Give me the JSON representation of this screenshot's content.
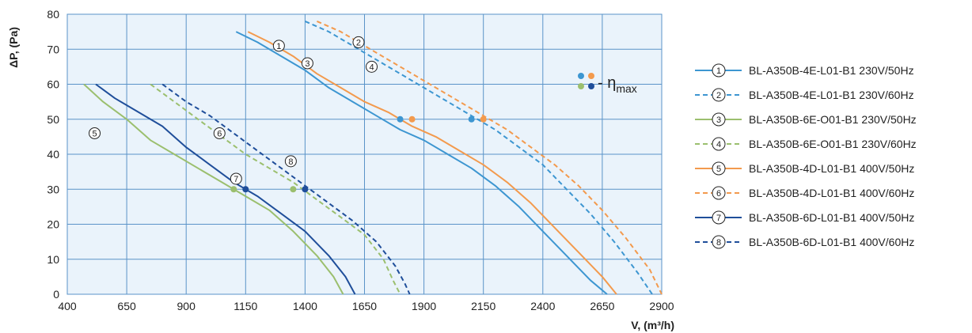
{
  "chart_data": {
    "type": "line",
    "xlabel": "V, (m³/h)",
    "ylabel": "ΔP, (Pa)",
    "xlim": [
      400,
      2900
    ],
    "ylim": [
      0,
      80
    ],
    "x_ticks": [
      400,
      650,
      900,
      1150,
      1400,
      1650,
      1900,
      2150,
      2400,
      2650,
      2900
    ],
    "y_ticks": [
      0,
      10,
      20,
      30,
      40,
      50,
      60,
      70,
      80
    ],
    "grid": true,
    "legend_position": "right",
    "eta_label": {
      "prefix": "- η",
      "sub": "max"
    },
    "series": [
      {
        "name": "BL-A350B-4E-L01-B1 230V/50Hz",
        "marker": "①",
        "color": "#3d96d1",
        "dashed": false,
        "points": [
          [
            1110,
            75
          ],
          [
            1200,
            72
          ],
          [
            1300,
            68
          ],
          [
            1400,
            64
          ],
          [
            1500,
            59
          ],
          [
            1600,
            55
          ],
          [
            1700,
            51
          ],
          [
            1800,
            47
          ],
          [
            1900,
            44
          ],
          [
            2000,
            40
          ],
          [
            2100,
            36
          ],
          [
            2200,
            31
          ],
          [
            2300,
            25
          ],
          [
            2400,
            18
          ],
          [
            2500,
            11
          ],
          [
            2600,
            4
          ],
          [
            2670,
            0
          ]
        ],
        "eta_point": [
          1800,
          50
        ],
        "label_point": [
          1290,
          71
        ]
      },
      {
        "name": "BL-A350B-4E-L01-B1 230V/60Hz",
        "marker": "②",
        "color": "#3d96d1",
        "dashed": true,
        "points": [
          [
            1400,
            78
          ],
          [
            1500,
            75
          ],
          [
            1600,
            71
          ],
          [
            1700,
            67
          ],
          [
            1800,
            63
          ],
          [
            1900,
            59
          ],
          [
            2000,
            55
          ],
          [
            2100,
            51
          ],
          [
            2200,
            47
          ],
          [
            2300,
            42
          ],
          [
            2400,
            37
          ],
          [
            2500,
            30
          ],
          [
            2600,
            23
          ],
          [
            2700,
            15
          ],
          [
            2800,
            6
          ],
          [
            2860,
            0
          ]
        ],
        "eta_point": [
          2100,
          50
        ],
        "label_point": [
          1625,
          72
        ]
      },
      {
        "name": "BL-A350B-6E-O01-B1 230V/50Hz",
        "marker": "③",
        "color": "#9bbf6e",
        "dashed": false,
        "points": [
          [
            470,
            60
          ],
          [
            550,
            55
          ],
          [
            650,
            50
          ],
          [
            750,
            44
          ],
          [
            850,
            40
          ],
          [
            950,
            36
          ],
          [
            1050,
            32
          ],
          [
            1150,
            28
          ],
          [
            1250,
            24
          ],
          [
            1350,
            18
          ],
          [
            1450,
            11
          ],
          [
            1520,
            5
          ],
          [
            1560,
            0
          ]
        ],
        "eta_point": [
          1100,
          30
        ],
        "label_point": [
          1410,
          66
        ]
      },
      {
        "name": "BL-A350B-6E-O01-B1 230V/60Hz",
        "marker": "④",
        "color": "#9bbf6e",
        "dashed": true,
        "points": [
          [
            750,
            60
          ],
          [
            850,
            55
          ],
          [
            950,
            50
          ],
          [
            1050,
            45
          ],
          [
            1150,
            40
          ],
          [
            1250,
            36
          ],
          [
            1350,
            32
          ],
          [
            1450,
            27
          ],
          [
            1550,
            22
          ],
          [
            1650,
            17
          ],
          [
            1730,
            10
          ],
          [
            1770,
            4
          ],
          [
            1800,
            0
          ]
        ],
        "eta_point": [
          1350,
          30
        ],
        "label_point": [
          1680,
          65
        ]
      },
      {
        "name": "BL-A350B-4D-L01-B1 400V/50Hz",
        "marker": "⑤",
        "color": "#f39a4d",
        "dashed": false,
        "points": [
          [
            1160,
            75
          ],
          [
            1250,
            72
          ],
          [
            1350,
            68
          ],
          [
            1450,
            63
          ],
          [
            1550,
            59
          ],
          [
            1650,
            55
          ],
          [
            1750,
            52
          ],
          [
            1850,
            48
          ],
          [
            1950,
            45
          ],
          [
            2050,
            41
          ],
          [
            2150,
            37
          ],
          [
            2250,
            32
          ],
          [
            2350,
            26
          ],
          [
            2450,
            19
          ],
          [
            2550,
            12
          ],
          [
            2650,
            5
          ],
          [
            2710,
            0
          ]
        ],
        "eta_point": [
          1850,
          50
        ],
        "label_point": [
          515,
          46
        ]
      },
      {
        "name": "BL-A350B-4D-L01-B1 400V/60Hz",
        "marker": "⑥",
        "color": "#f39a4d",
        "dashed": true,
        "points": [
          [
            1450,
            78
          ],
          [
            1550,
            75
          ],
          [
            1650,
            71
          ],
          [
            1750,
            67
          ],
          [
            1850,
            63
          ],
          [
            1950,
            59
          ],
          [
            2050,
            55
          ],
          [
            2150,
            51
          ],
          [
            2250,
            47
          ],
          [
            2350,
            42
          ],
          [
            2450,
            37
          ],
          [
            2550,
            31
          ],
          [
            2650,
            24
          ],
          [
            2750,
            16
          ],
          [
            2850,
            7
          ],
          [
            2900,
            0
          ]
        ],
        "eta_point": [
          2150,
          50
        ],
        "label_point": [
          1040,
          46
        ]
      },
      {
        "name": "BL-A350B-6D-L01-B1 400V/50Hz",
        "marker": "⑦",
        "color": "#1f4e9a",
        "dashed": false,
        "points": [
          [
            520,
            60
          ],
          [
            600,
            56
          ],
          [
            700,
            52
          ],
          [
            800,
            48
          ],
          [
            900,
            42
          ],
          [
            1000,
            37
          ],
          [
            1100,
            32
          ],
          [
            1200,
            28
          ],
          [
            1300,
            23
          ],
          [
            1400,
            18
          ],
          [
            1500,
            11
          ],
          [
            1570,
            5
          ],
          [
            1610,
            0
          ]
        ],
        "eta_point": [
          1150,
          30
        ],
        "label_point": [
          1110,
          33
        ]
      },
      {
        "name": "BL-A350B-6D-L01-B1 400V/60Hz",
        "marker": "⑧",
        "color": "#1f4e9a",
        "dashed": true,
        "points": [
          [
            800,
            60
          ],
          [
            900,
            55
          ],
          [
            1000,
            51
          ],
          [
            1100,
            46
          ],
          [
            1200,
            41
          ],
          [
            1300,
            36
          ],
          [
            1400,
            31
          ],
          [
            1500,
            26
          ],
          [
            1600,
            21
          ],
          [
            1700,
            15
          ],
          [
            1780,
            8
          ],
          [
            1820,
            3
          ],
          [
            1840,
            0
          ]
        ],
        "eta_point": [
          1400,
          30
        ],
        "label_point": [
          1340,
          38
        ]
      }
    ]
  }
}
